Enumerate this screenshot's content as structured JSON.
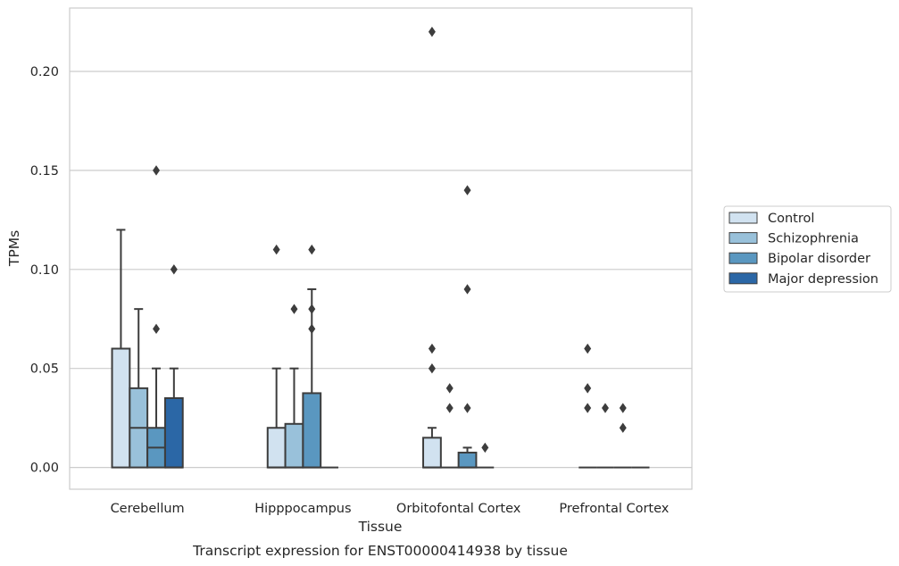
{
  "chart_data": {
    "type": "box",
    "caption": "Transcript expression for ENST00000414938 by tissue",
    "xlabel": "Tissue",
    "ylabel": "TPMs",
    "ylim": [
      -0.011,
      0.232
    ],
    "yticks": [
      0.0,
      0.05,
      0.1,
      0.15,
      0.2
    ],
    "ytick_labels": [
      "0.00",
      "0.05",
      "0.10",
      "0.15",
      "0.20"
    ],
    "grid": "horizontal",
    "legend_position": "right",
    "categories": [
      "Cerebellum",
      "Hipppocampus",
      "Orbitofontal Cortex",
      "Prefrontal Cortex"
    ],
    "series": [
      {
        "name": "Control",
        "color": "#d1e2f0",
        "boxes": [
          {
            "q1": 0.0,
            "median": 0.06,
            "q3": 0.06,
            "whisker_low": 0.0,
            "whisker_high": 0.12,
            "outliers": []
          },
          {
            "q1": 0.0,
            "median": 0.0,
            "q3": 0.02,
            "whisker_low": 0.0,
            "whisker_high": 0.05,
            "outliers": [
              0.11
            ]
          },
          {
            "q1": 0.0,
            "median": 0.0,
            "q3": 0.015,
            "whisker_low": 0.0,
            "whisker_high": 0.02,
            "outliers": [
              0.22,
              0.06,
              0.05
            ]
          },
          {
            "q1": 0.0,
            "median": 0.0,
            "q3": 0.0,
            "whisker_low": 0.0,
            "whisker_high": 0.0,
            "outliers": [
              0.06,
              0.04,
              0.03
            ]
          }
        ]
      },
      {
        "name": "Schizophrenia",
        "color": "#99c1da",
        "boxes": [
          {
            "q1": 0.0,
            "median": 0.02,
            "q3": 0.04,
            "whisker_low": 0.0,
            "whisker_high": 0.08,
            "outliers": []
          },
          {
            "q1": 0.0,
            "median": 0.0,
            "q3": 0.022,
            "whisker_low": 0.0,
            "whisker_high": 0.05,
            "outliers": [
              0.08
            ]
          },
          {
            "q1": 0.0,
            "median": 0.0,
            "q3": 0.0,
            "whisker_low": 0.0,
            "whisker_high": 0.0,
            "outliers": [
              0.04,
              0.03
            ]
          },
          {
            "q1": 0.0,
            "median": 0.0,
            "q3": 0.0,
            "whisker_low": 0.0,
            "whisker_high": 0.0,
            "outliers": [
              0.03
            ]
          }
        ]
      },
      {
        "name": "Bipolar disorder",
        "color": "#5a97c0",
        "boxes": [
          {
            "q1": 0.0,
            "median": 0.01,
            "q3": 0.02,
            "whisker_low": 0.0,
            "whisker_high": 0.05,
            "outliers": [
              0.15,
              0.07
            ]
          },
          {
            "q1": 0.0,
            "median": 0.0,
            "q3": 0.0375,
            "whisker_low": 0.0,
            "whisker_high": 0.09,
            "outliers": [
              0.11,
              0.08,
              0.07
            ]
          },
          {
            "q1": 0.0,
            "median": 0.0,
            "q3": 0.0075,
            "whisker_low": 0.0,
            "whisker_high": 0.01,
            "outliers": [
              0.14,
              0.09,
              0.03
            ]
          },
          {
            "q1": 0.0,
            "median": 0.0,
            "q3": 0.0,
            "whisker_low": 0.0,
            "whisker_high": 0.0,
            "outliers": [
              0.03,
              0.02
            ]
          }
        ]
      },
      {
        "name": "Major depression",
        "color": "#2b67a6",
        "boxes": [
          {
            "q1": 0.0,
            "median": 0.0,
            "q3": 0.035,
            "whisker_low": 0.0,
            "whisker_high": 0.05,
            "outliers": [
              0.1
            ]
          },
          {
            "q1": 0.0,
            "median": 0.0,
            "q3": 0.0,
            "whisker_low": 0.0,
            "whisker_high": 0.0,
            "outliers": []
          },
          {
            "q1": 0.0,
            "median": 0.0,
            "q3": 0.0,
            "whisker_low": 0.0,
            "whisker_high": 0.0,
            "outliers": [
              0.01
            ]
          },
          {
            "q1": 0.0,
            "median": 0.0,
            "q3": 0.0,
            "whisker_low": 0.0,
            "whisker_high": 0.0,
            "outliers": []
          }
        ]
      }
    ]
  }
}
